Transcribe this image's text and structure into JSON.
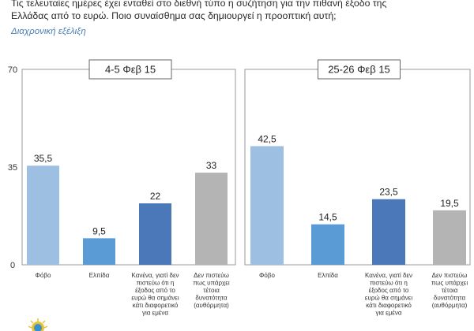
{
  "question": "Τις τελευταίες ημέρες έχει ενταθεί στο διεθνή τύπο η συζήτηση για την πιθανή έξοδο της\nΕλλάδας από το ευρώ. Ποιο συναίσθημα σας δημιουργεί η προοπτική αυτή;",
  "subtitle": "Διαχρονική εξέλιξη",
  "colors": {
    "fear": "#9dc0e2",
    "hope": "#5b9bd5",
    "none": "#4a78b8",
    "dont_believe": "#b4b4b4"
  },
  "chart_data": [
    {
      "type": "bar",
      "panel_label": "4-5 Φεβ 15",
      "categories": [
        "Φόβο",
        "Ελπίδα",
        "Κανένα, γιατί δεν πιστεύω ότι η έξοδος από το ευρώ θα σημάνει κάτι διαφορετικό για εμένα",
        "Δεν πιστεύω πως υπάρχει τέτοια δυνατότητα (αυθόρμητα)"
      ],
      "category_lines": [
        [
          "Φόβο"
        ],
        [
          "Ελπίδα"
        ],
        [
          "Κανένα, γιατί δεν",
          "πιστεύω ότι η",
          "έξοδος από το",
          "ευρώ θα σημάνει",
          "κάτι διαφορετικό",
          "για εμένα"
        ],
        [
          "Δεν πιστεύω",
          "πως υπάρχει",
          "τέτοια",
          "δυνατότητα",
          "(αυθόρμητα)"
        ]
      ],
      "values": [
        35.5,
        9.5,
        22,
        33
      ],
      "value_labels": [
        "35,5",
        "9,5",
        "22",
        "33"
      ],
      "ylim": [
        0,
        70
      ],
      "yticks": [
        0,
        35,
        70
      ],
      "grid": false
    },
    {
      "type": "bar",
      "panel_label": "25-26 Φεβ 15",
      "categories": [
        "Φόβο",
        "Ελπίδα",
        "Κανένα, γιατί δεν πιστεύω ότι η έξοδος από το ευρώ θα σημάνει κάτι διαφορετικό για εμένα",
        "Δεν πιστεύω πως υπάρχει τέτοια δυνατότητα (αυθόρμητα)"
      ],
      "category_lines": [
        [
          "Φόβο"
        ],
        [
          "Ελπίδα"
        ],
        [
          "Κανένα, γιατί δεν",
          "πιστεύω ότι η",
          "έξοδος από το",
          "ευρώ θα σημάνει",
          "κάτι διαφορετικό",
          "για εμένα"
        ],
        [
          "Δεν πιστεύω",
          "πως υπάρχει",
          "τέτοια",
          "δυνατότητα",
          "(αυθόρμητα)"
        ]
      ],
      "values": [
        42.5,
        14.5,
        23.5,
        19.5
      ],
      "value_labels": [
        "42,5",
        "14,5",
        "23,5",
        "19,5"
      ],
      "ylim": [
        0,
        70
      ],
      "grid": false
    }
  ]
}
